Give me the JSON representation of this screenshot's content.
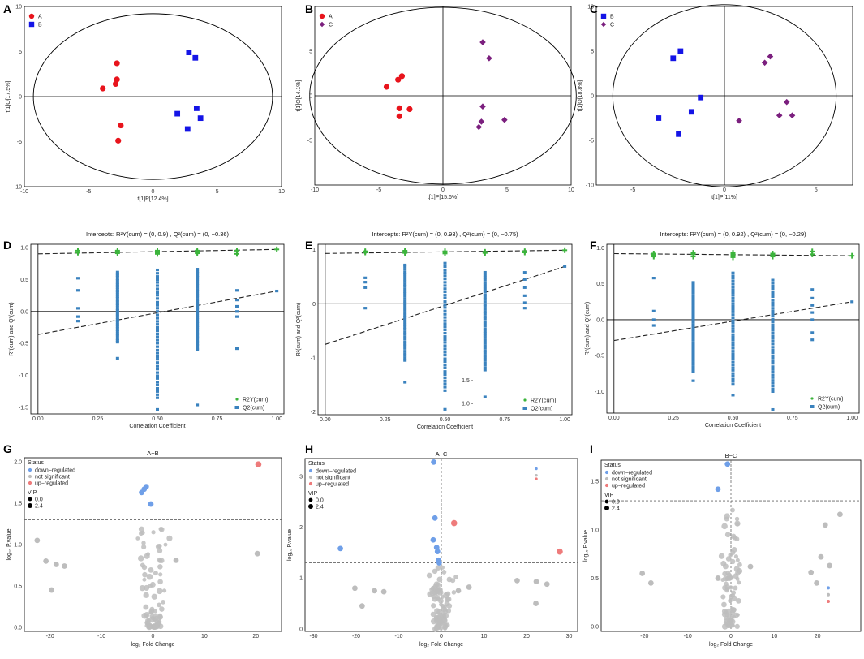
{
  "figure": {
    "colors": {
      "red": "#e8141c",
      "blue": "#1414e6",
      "purple": "#7b1f7e",
      "r2": "#3cb43c",
      "q2": "#3a82be",
      "down": "#6f9fe8",
      "ns": "#bdbdbd",
      "up": "#ee7b7b"
    }
  },
  "chart_data": [
    {
      "panel": "A",
      "type": "scatter",
      "xlabel": "t[1]P[12.4%]",
      "ylabel": "t[1]O[17.5%]",
      "xlim": [
        -10,
        10
      ],
      "ylim": [
        -10,
        10
      ],
      "xticks": [
        -10,
        -5,
        0,
        5,
        10
      ],
      "yticks": [
        -10,
        -5,
        0,
        5,
        10
      ],
      "ellipse": {
        "rx": 9.3,
        "ry": 9.2
      },
      "legend": [
        "A",
        "B"
      ],
      "series": [
        {
          "name": "A",
          "shape": "circle",
          "color": "red",
          "points": [
            [
              -2.8,
              3.7
            ],
            [
              -2.8,
              1.9
            ],
            [
              -2.9,
              1.4
            ],
            [
              -3.9,
              0.9
            ],
            [
              -2.5,
              -3.2
            ],
            [
              -2.7,
              -4.9
            ]
          ]
        },
        {
          "name": "B",
          "shape": "square",
          "color": "blue",
          "points": [
            [
              2.8,
              4.9
            ],
            [
              3.3,
              4.3
            ],
            [
              3.4,
              -1.3
            ],
            [
              3.7,
              -2.4
            ],
            [
              1.9,
              -1.9
            ],
            [
              2.7,
              -3.6
            ]
          ]
        }
      ]
    },
    {
      "panel": "B",
      "type": "scatter",
      "xlabel": "t[1]P[15.6%]",
      "ylabel": "t[1]O[14.1%]",
      "xlim": [
        -10,
        10
      ],
      "ylim": [
        -10,
        10
      ],
      "xticks": [
        -10,
        -5,
        0,
        5,
        10
      ],
      "yticks": [
        -5,
        0,
        5
      ],
      "ellipse": {
        "rx": 10.4,
        "ry": 9.9
      },
      "legend": [
        "A",
        "C"
      ],
      "series": [
        {
          "name": "A",
          "shape": "circle",
          "color": "red",
          "points": [
            [
              -3.2,
              2.2
            ],
            [
              -3.5,
              1.8
            ],
            [
              -4.4,
              1.0
            ],
            [
              -3.4,
              -1.4
            ],
            [
              -2.6,
              -1.5
            ],
            [
              -3.4,
              -2.3
            ]
          ]
        },
        {
          "name": "C",
          "shape": "diamond",
          "color": "purple",
          "points": [
            [
              3.1,
              6.0
            ],
            [
              3.6,
              4.2
            ],
            [
              3.1,
              -1.2
            ],
            [
              3.0,
              -2.9
            ],
            [
              4.8,
              -2.7
            ],
            [
              2.8,
              -3.5
            ]
          ]
        }
      ]
    },
    {
      "panel": "C",
      "type": "scatter",
      "xlabel": "t[1]P[11%]",
      "ylabel": "t[1]O[18.8%]",
      "xlim": [
        -7,
        7
      ],
      "ylim": [
        -10,
        10
      ],
      "xticks": [
        -5,
        0,
        5
      ],
      "yticks": [
        -10,
        -5,
        0,
        5,
        10
      ],
      "ellipse": {
        "rx": 6.1,
        "ry": 10.2
      },
      "legend": [
        "B",
        "C"
      ],
      "series": [
        {
          "name": "B",
          "shape": "square",
          "color": "blue",
          "points": [
            [
              -2.4,
              5.0
            ],
            [
              -2.8,
              4.2
            ],
            [
              -1.3,
              -0.2
            ],
            [
              -1.8,
              -1.8
            ],
            [
              -3.6,
              -2.5
            ],
            [
              -2.5,
              -4.3
            ]
          ]
        },
        {
          "name": "C",
          "shape": "diamond",
          "color": "purple",
          "points": [
            [
              2.5,
              4.4
            ],
            [
              2.2,
              3.7
            ],
            [
              3.4,
              -0.7
            ],
            [
              3.7,
              -2.2
            ],
            [
              3.0,
              -2.2
            ],
            [
              0.8,
              -2.8
            ]
          ]
        }
      ]
    },
    {
      "panel": "D",
      "type": "scatter",
      "title": "Intercepts:  R²Y(cum) =   (0, 0.9)  , Q²(cum) =   (0, −0.36)",
      "xlabel": "Correlation Coefficient",
      "ylabel": "R²(cum) and Q²(cum)",
      "xlim": [
        -0.03,
        1.03
      ],
      "ylim": [
        -1.6,
        1.05
      ],
      "xticks": [
        "0.00",
        "0.25",
        "0.50",
        "0.75",
        "1.00"
      ],
      "yticks": [
        "1.0",
        "0.5",
        "0.0",
        "-0.5",
        "-1.0",
        "-1.5"
      ],
      "r2_line": [
        [
          0,
          0.9
        ],
        [
          1,
          0.97
        ]
      ],
      "q2_line": [
        [
          0,
          -0.36
        ],
        [
          1,
          0.32
        ]
      ],
      "legend": [
        "R2Y(cum)",
        "Q2(cum)"
      ],
      "columns": [
        {
          "x": 0.167,
          "r2": [
            0.92,
            0.95
          ],
          "q2": [
            0.52,
            0.33,
            0.05,
            -0.08,
            -0.15
          ]
        },
        {
          "x": 0.333,
          "r2": [
            0.91,
            0.93,
            0.95
          ],
          "q2": {
            "from": -0.48,
            "to": 0.62,
            "extra": [
              -0.73
            ]
          }
        },
        {
          "x": 0.5,
          "r2": [
            0.9,
            0.92,
            0.93,
            0.95
          ],
          "q2": {
            "from": -1.35,
            "to": 0.65,
            "extra": [
              -1.53
            ]
          }
        },
        {
          "x": 0.667,
          "r2": [
            0.91,
            0.93,
            0.95
          ],
          "q2": {
            "from": -0.6,
            "to": 0.66,
            "extra": [
              -1.46
            ]
          }
        },
        {
          "x": 0.833,
          "r2": [
            0.9,
            0.95
          ],
          "q2": [
            0.33,
            0.18,
            0.08,
            0.0,
            -0.08,
            -0.58
          ]
        },
        {
          "x": 1.0,
          "r2": [
            0.97
          ],
          "q2": [
            0.32
          ]
        }
      ]
    },
    {
      "panel": "E",
      "type": "scatter",
      "title": "Intercepts:  R²Y(cum) =   (0, 0.93)  , Q²(cum) =   (0, −0.75)",
      "xlabel": "Correlation Coefficient",
      "ylabel": "R²(cum) and Q²(cum)",
      "xlim": [
        -0.03,
        1.03
      ],
      "ylim": [
        -2.05,
        1.1
      ],
      "xticks": [
        "0.00",
        "0.25",
        "0.50",
        "0.75",
        "1.00"
      ],
      "yticks": [
        "1",
        "0",
        "-1",
        "-2"
      ],
      "r2_line": [
        [
          0,
          0.93
        ],
        [
          1,
          0.99
        ]
      ],
      "q2_line": [
        [
          0,
          -0.75
        ],
        [
          1,
          0.69
        ]
      ],
      "legend": [
        "R2Y(cum)",
        "Q2(cum)"
      ],
      "annotations": [
        "1.5 -",
        "1.0 -"
      ],
      "columns": [
        {
          "x": 0.167,
          "r2": [
            0.95,
            0.97
          ],
          "q2": [
            0.48,
            0.4,
            0.3,
            -0.08
          ]
        },
        {
          "x": 0.333,
          "r2": [
            0.94,
            0.96,
            0.98
          ],
          "q2": {
            "from": -1.05,
            "to": 0.72,
            "extra": [
              -1.45
            ]
          }
        },
        {
          "x": 0.5,
          "r2": [
            0.93,
            0.95,
            0.97
          ],
          "q2": {
            "from": -1.6,
            "to": 0.75,
            "extra": [
              -1.95
            ]
          }
        },
        {
          "x": 0.667,
          "r2": [
            0.94,
            0.96
          ],
          "q2": {
            "from": -1.22,
            "to": 0.58,
            "extra": [
              -1.72
            ]
          }
        },
        {
          "x": 0.833,
          "r2": [
            0.95,
            0.97
          ],
          "q2": [
            0.58,
            0.45,
            0.3,
            0.15,
            0.02,
            -0.08
          ]
        },
        {
          "x": 1.0,
          "r2": [
            0.99
          ],
          "q2": [
            0.69
          ]
        }
      ]
    },
    {
      "panel": "F",
      "type": "scatter",
      "title": "Intercepts:   R²Y(cum) =   (0, 0.92)  , Q²(cum) =   (0, −0.29)",
      "xlabel": "Correlation Coefficient",
      "ylabel": "R²(cum) and Q²(cum)",
      "xlim": [
        -0.03,
        1.03
      ],
      "ylim": [
        -1.3,
        1.05
      ],
      "xticks": [
        "0.00",
        "0.25",
        "0.50",
        "0.75",
        "1.00"
      ],
      "yticks": [
        "1.0",
        "0.5",
        "0.0",
        "-0.5",
        "-1.0"
      ],
      "r2_line": [
        [
          0,
          0.92
        ],
        [
          1,
          0.89
        ]
      ],
      "q2_line": [
        [
          0,
          -0.29
        ],
        [
          1,
          0.25
        ]
      ],
      "legend": [
        "R2Y(cum)",
        "Q2(cum)"
      ],
      "columns": [
        {
          "x": 0.167,
          "r2": [
            0.88,
            0.9,
            0.92
          ],
          "q2": [
            0.58,
            0.12,
            0.0,
            -0.08
          ]
        },
        {
          "x": 0.333,
          "r2": [
            0.88,
            0.91,
            0.93
          ],
          "q2": {
            "from": -0.72,
            "to": 0.52,
            "extra": [
              -0.85
            ]
          }
        },
        {
          "x": 0.5,
          "r2": [
            0.87,
            0.89,
            0.91,
            0.93
          ],
          "q2": {
            "from": -0.9,
            "to": 0.65,
            "extra": [
              -1.05
            ]
          }
        },
        {
          "x": 0.667,
          "r2": [
            0.88,
            0.9,
            0.92
          ],
          "q2": {
            "from": -1.0,
            "to": 0.55,
            "extra": [
              -1.25
            ]
          }
        },
        {
          "x": 0.833,
          "r2": [
            0.95,
            0.91
          ],
          "q2": [
            0.42,
            0.3,
            0.2,
            0.1,
            0.0,
            -0.18,
            -0.28
          ]
        },
        {
          "x": 1.0,
          "r2": [
            0.89
          ],
          "q2": [
            0.25
          ]
        }
      ]
    },
    {
      "panel": "G",
      "type": "scatter",
      "title": "A−B",
      "xlabel": "log₂ Fold Change",
      "ylabel": "log₁₀ P.value",
      "xlim": [
        -25,
        25
      ],
      "ylim": [
        -0.05,
        2.05
      ],
      "xticks": [
        -20,
        -10,
        0,
        10,
        20
      ],
      "yticks": [
        "0.0",
        "0.5",
        "1.0",
        "1.5",
        "2.0"
      ],
      "hline": 1.3,
      "vline": 0,
      "legend": {
        "status": "Status",
        "items": [
          "down−regulated",
          "not significant",
          "up−regulated"
        ],
        "vip": "VIP",
        "vip_values": [
          "0.0",
          "2.4"
        ]
      },
      "up": [
        [
          20.5,
          1.97
        ]
      ],
      "down": [
        [
          -2.2,
          1.63
        ],
        [
          -1.3,
          1.7
        ],
        [
          -1.7,
          1.67
        ],
        [
          -0.4,
          1.49
        ]
      ],
      "ns_extra": [
        [
          -22.5,
          1.05
        ],
        [
          -20.8,
          0.8
        ],
        [
          -18.8,
          0.76
        ],
        [
          -17.2,
          0.74
        ],
        [
          -19.7,
          0.45
        ],
        [
          20.3,
          0.89
        ],
        [
          4.5,
          0.81
        ]
      ]
    },
    {
      "panel": "H",
      "type": "scatter",
      "title": "A−C",
      "xlabel": "log₂ Fold Change",
      "ylabel": "log₁₀ P.value",
      "xlim": [
        -32,
        32
      ],
      "ylim": [
        -0.05,
        3.35
      ],
      "xticks": [
        -30,
        -20,
        -10,
        0,
        10,
        20,
        30
      ],
      "yticks": [
        "0",
        "1",
        "2",
        "3"
      ],
      "hline": 1.3,
      "vline": 0,
      "legend": {
        "status": "Status",
        "items": [
          "down−regulated",
          "not significant",
          "up−regulated"
        ],
        "vip": "VIP",
        "vip_values": [
          "0.0",
          "2.4"
        ]
      },
      "up": [
        [
          3.0,
          2.08
        ],
        [
          27.8,
          1.52
        ]
      ],
      "down": [
        [
          -1.8,
          3.28
        ],
        [
          -1.5,
          2.18
        ],
        [
          -1.9,
          1.75
        ],
        [
          -1.1,
          1.6
        ],
        [
          -0.9,
          1.52
        ],
        [
          -0.7,
          1.35
        ],
        [
          -0.5,
          1.3
        ],
        [
          -23.7,
          1.58
        ]
      ],
      "ns_extra": [
        [
          -20.3,
          0.8
        ],
        [
          -18.6,
          0.45
        ],
        [
          -15.7,
          0.75
        ],
        [
          -13.5,
          0.73
        ],
        [
          17.8,
          0.95
        ],
        [
          22.3,
          0.93
        ],
        [
          24.8,
          0.88
        ],
        [
          22.2,
          0.5
        ],
        [
          4.0,
          0.75
        ],
        [
          6.5,
          0.82
        ]
      ]
    },
    {
      "panel": "I",
      "type": "scatter",
      "title": "B−C",
      "xlabel": "log₂ Fold Change",
      "ylabel": "log₁₀ P.value",
      "xlim": [
        -30,
        30
      ],
      "ylim": [
        -0.05,
        1.72
      ],
      "xticks": [
        -20,
        -10,
        0,
        10,
        20
      ],
      "yticks": [
        "0.0",
        "0.5",
        "1.0",
        "1.5"
      ],
      "hline": 1.3,
      "vline": 0,
      "legend": {
        "status": "Status",
        "items": [
          "down−regulated",
          "not significant",
          "up−regulated"
        ],
        "vip": "VIP",
        "vip_values": [
          "0.0",
          "2.4"
        ]
      },
      "up": [],
      "down": [
        [
          -0.8,
          1.68
        ],
        [
          -3.0,
          1.42
        ]
      ],
      "ns_extra": [
        [
          -20.5,
          0.55
        ],
        [
          -18.5,
          0.45
        ],
        [
          -3.0,
          0.5
        ],
        [
          25.2,
          1.16
        ],
        [
          21.8,
          1.05
        ],
        [
          20.8,
          0.72
        ],
        [
          18.5,
          0.56
        ],
        [
          22.8,
          0.63
        ],
        [
          19.8,
          0.45
        ],
        [
          4.5,
          0.62
        ]
      ]
    }
  ]
}
